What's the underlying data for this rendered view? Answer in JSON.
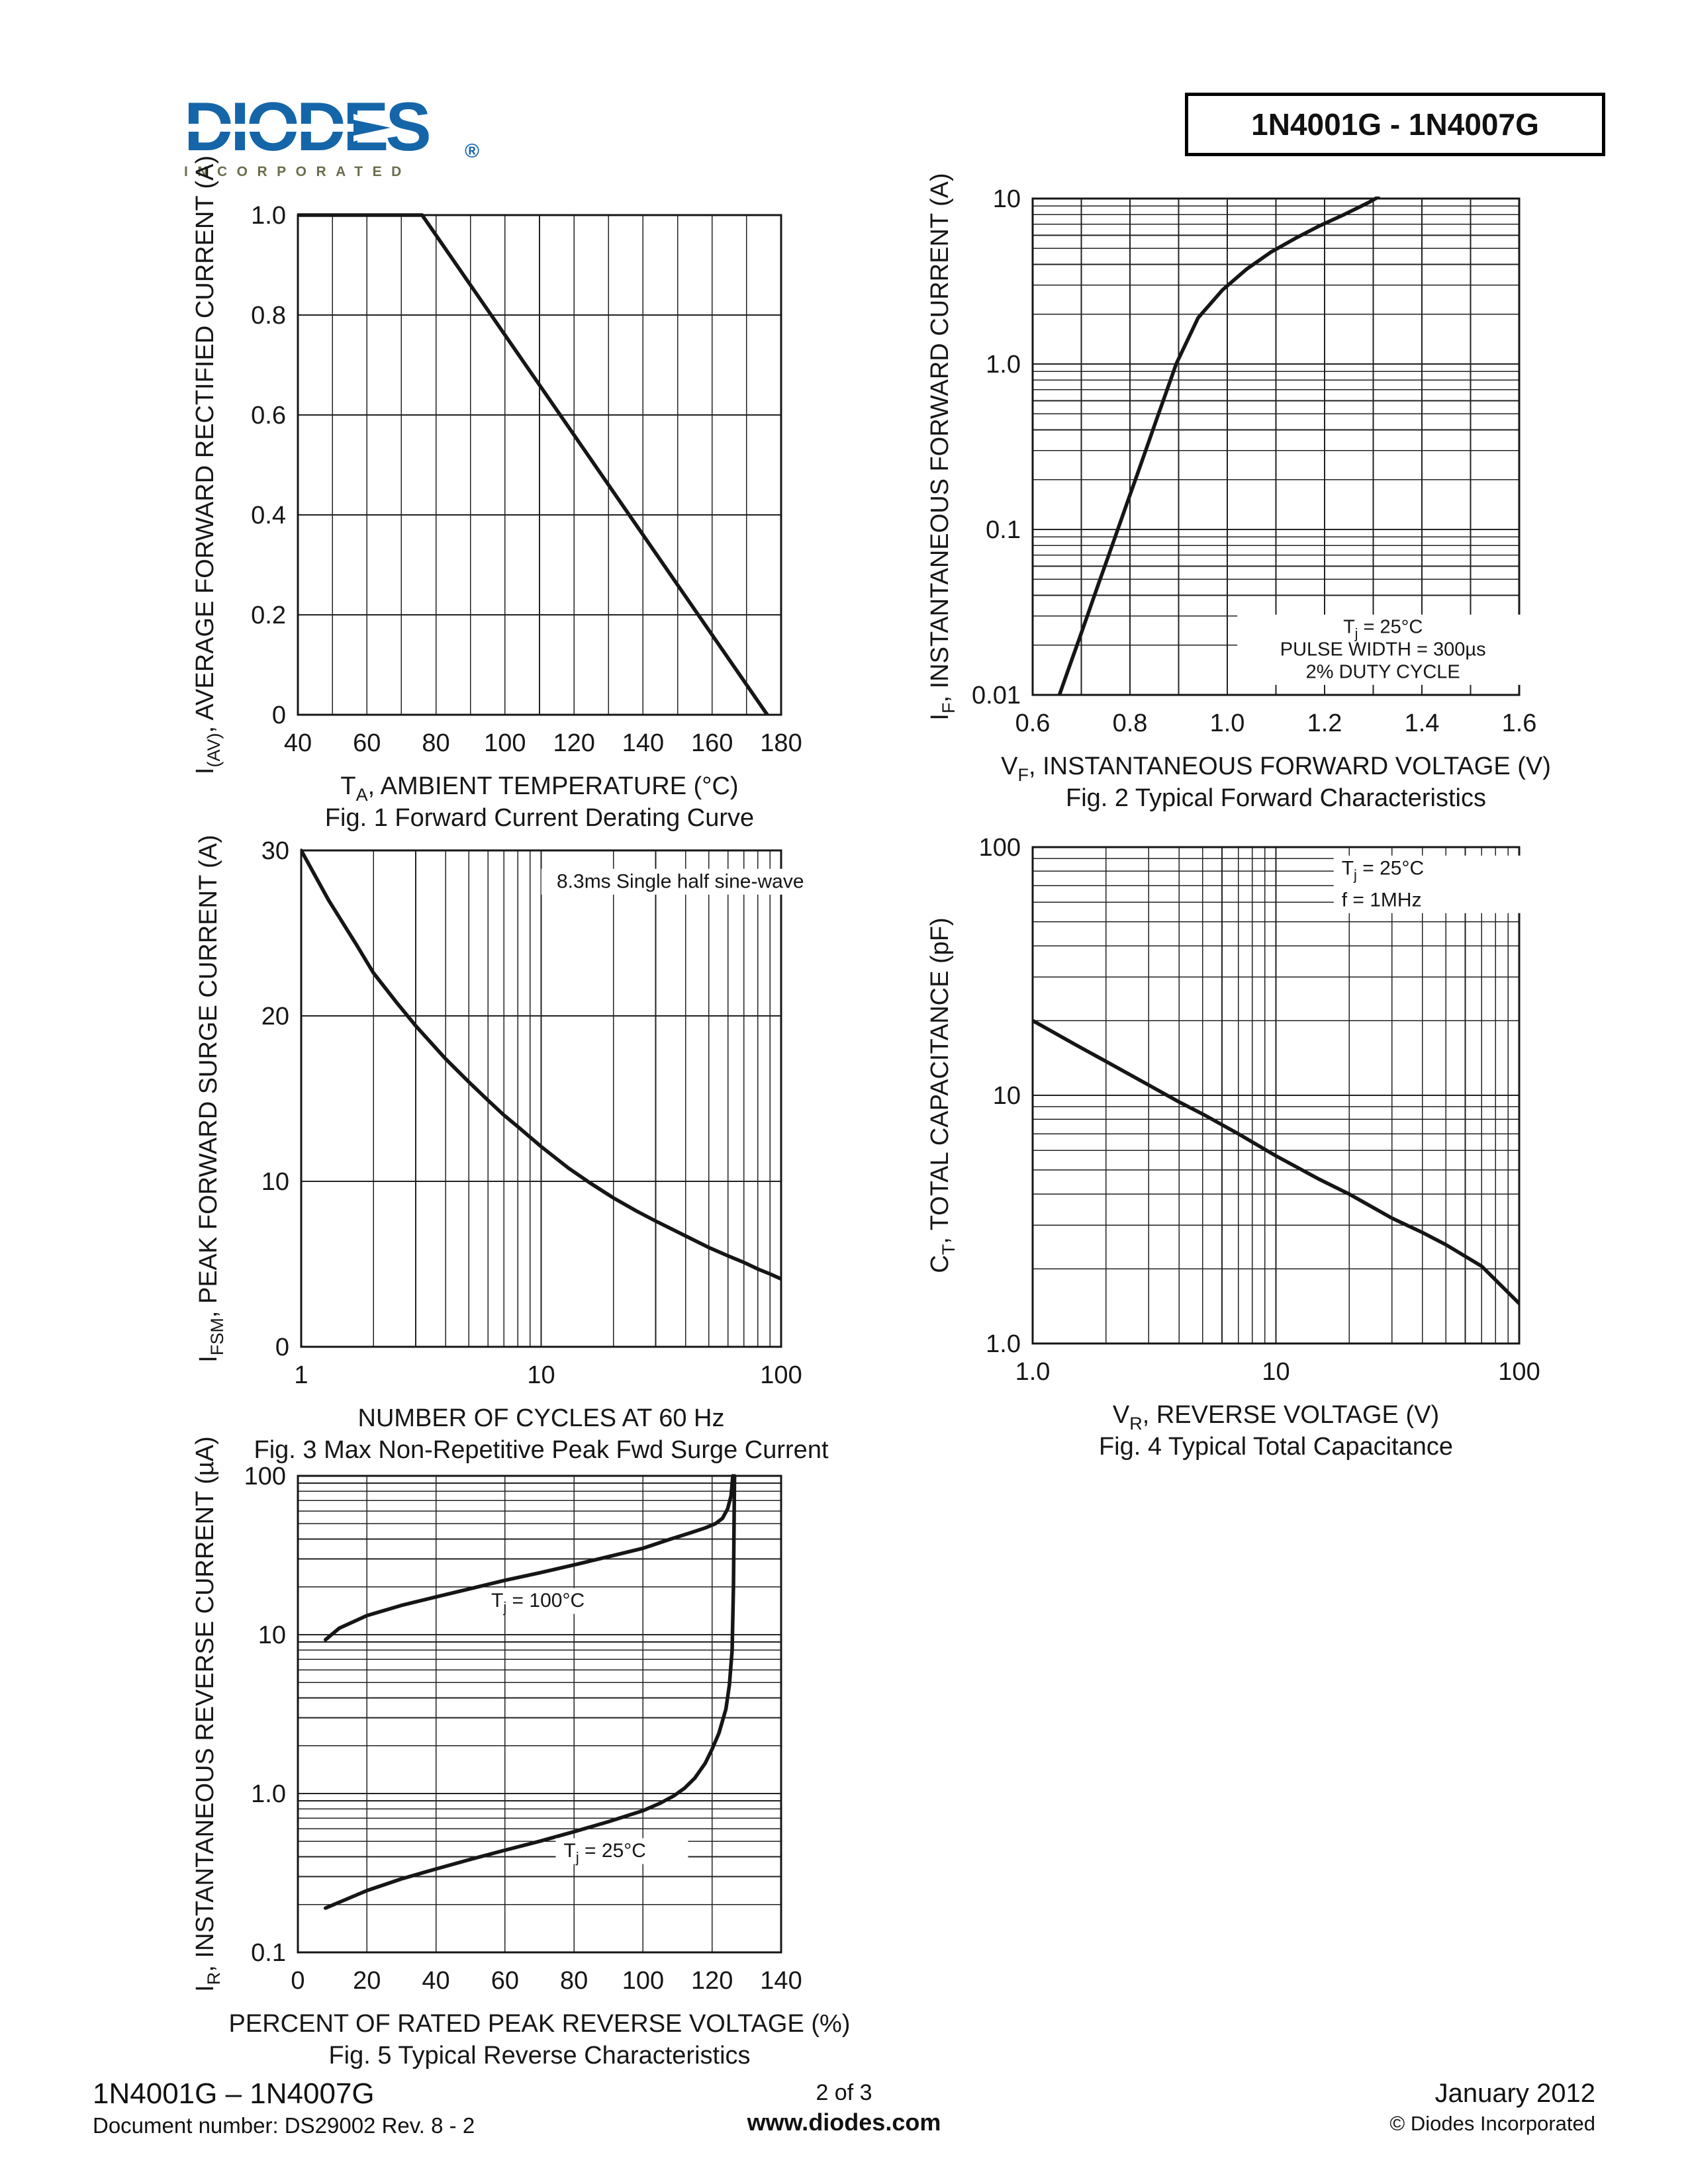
{
  "logo": {
    "brand": "DIODES",
    "tagline": "INCORPORATED",
    "registered": "®",
    "brand_color": "#1565A9",
    "tagline_color": "#6C6D4E"
  },
  "header": {
    "part_range": "1N4001G - 1N4007G"
  },
  "footer": {
    "part_range": "1N4001G – 1N4007G",
    "doc_number": "Document number: DS29002 Rev. 8 - 2",
    "page": "2 of 3",
    "website": "www.diodes.com",
    "date": "January 2012",
    "copyright": "© Diodes Incorporated"
  },
  "chart_data": [
    {
      "type": "line",
      "caption": "Fig. 1 Forward Current Derating Curve",
      "xlabel": [
        {
          "t": "T"
        },
        {
          "t": "A",
          "sub": true
        },
        {
          "t": ", AMBIENT TEMPERATURE (°C)"
        }
      ],
      "ylabel": [
        {
          "t": "I"
        },
        {
          "t": "(AV)",
          "sub": true
        },
        {
          "t": ", AVERAGE FORWARD RECTIFIED CURRENT (A)"
        }
      ],
      "x": {
        "scale": "linear",
        "min": 40,
        "max": 180,
        "grid": 10,
        "ticks": [
          {
            "v": 40,
            "l": "40"
          },
          {
            "v": 60,
            "l": "60"
          },
          {
            "v": 80,
            "l": "80"
          },
          {
            "v": 100,
            "l": "100"
          },
          {
            "v": 120,
            "l": "120"
          },
          {
            "v": 140,
            "l": "140"
          },
          {
            "v": 160,
            "l": "160"
          },
          {
            "v": 180,
            "l": "180"
          }
        ]
      },
      "y": {
        "scale": "linear",
        "min": 0,
        "max": 1.0,
        "grid": 0.2,
        "ticks": [
          {
            "v": 0,
            "l": "0"
          },
          {
            "v": 0.2,
            "l": "0.2"
          },
          {
            "v": 0.4,
            "l": "0.4"
          },
          {
            "v": 0.6,
            "l": "0.6"
          },
          {
            "v": 0.8,
            "l": "0.8"
          },
          {
            "v": 1.0,
            "l": "1.0"
          }
        ]
      },
      "series": [
        {
          "name": "forward-current-derating",
          "points": [
            [
              40,
              1.0
            ],
            [
              76,
              1.0
            ],
            [
              176,
              0
            ]
          ]
        }
      ],
      "annotations": []
    },
    {
      "type": "line",
      "caption": "Fig. 2  Typical Forward Characteristics",
      "xlabel": [
        {
          "t": "V"
        },
        {
          "t": "F",
          "sub": true
        },
        {
          "t": ", INSTANTANEOUS FORWARD VOLTAGE (V)"
        }
      ],
      "ylabel": [
        {
          "t": "I"
        },
        {
          "t": "F",
          "sub": true
        },
        {
          "t": ", INSTANTANEOUS FORWARD CURRENT (A)"
        }
      ],
      "x": {
        "scale": "linear",
        "min": 0.6,
        "max": 1.6,
        "grid": 0.1,
        "ticks": [
          {
            "v": 0.6,
            "l": "0.6"
          },
          {
            "v": 0.8,
            "l": "0.8"
          },
          {
            "v": 1.0,
            "l": "1.0"
          },
          {
            "v": 1.2,
            "l": "1.2"
          },
          {
            "v": 1.4,
            "l": "1.4"
          },
          {
            "v": 1.6,
            "l": "1.6"
          }
        ]
      },
      "y": {
        "scale": "log",
        "min": 0.01,
        "max": 10,
        "ticks": [
          {
            "v": 10,
            "l": "10"
          },
          {
            "v": 1,
            "l": "1.0"
          },
          {
            "v": 0.1,
            "l": "0.1"
          },
          {
            "v": 0.01,
            "l": "0.01"
          }
        ]
      },
      "series": [
        {
          "name": "typical-forward-characteristic",
          "points": [
            [
              0.655,
              0.01
            ],
            [
              0.675,
              0.0147
            ],
            [
              0.695,
              0.0215
            ],
            [
              0.715,
              0.0316
            ],
            [
              0.735,
              0.0466
            ],
            [
              0.755,
              0.0681
            ],
            [
              0.775,
              0.1
            ],
            [
              0.795,
              0.147
            ],
            [
              0.815,
              0.215
            ],
            [
              0.835,
              0.316
            ],
            [
              0.855,
              0.465
            ],
            [
              0.875,
              0.681
            ],
            [
              0.895,
              1.0
            ],
            [
              0.94,
              1.9
            ],
            [
              0.99,
              2.8
            ],
            [
              1.04,
              3.75
            ],
            [
              1.09,
              4.75
            ],
            [
              1.14,
              5.75
            ],
            [
              1.19,
              6.85
            ],
            [
              1.24,
              8.0
            ],
            [
              1.29,
              9.45
            ],
            [
              1.31,
              10.2
            ]
          ]
        }
      ],
      "annotations": [
        {
          "fx": 0.72,
          "fy": 0.875,
          "anchor": "middle",
          "size": 29,
          "lh": 1.18,
          "boxed": true,
          "boxw": 440,
          "lines": [
            [
              {
                "t": "T"
              },
              {
                "t": "j",
                "sub": true
              },
              {
                "t": " = 25°C"
              }
            ],
            [
              {
                "t": "PULSE WIDTH = 300µs"
              }
            ],
            [
              {
                "t": "2% DUTY CYCLE"
              }
            ]
          ]
        }
      ]
    },
    {
      "type": "line",
      "caption": "Fig. 3  Max Non-Repetitive Peak Fwd Surge Current",
      "xlabel": [
        {
          "t": "NUMBER OF CYCLES AT 60 Hz"
        }
      ],
      "ylabel": [
        {
          "t": "I"
        },
        {
          "t": "FSM",
          "sub": true
        },
        {
          "t": ", PEAK FORWARD SURGE CURRENT (A)"
        }
      ],
      "x": {
        "scale": "log",
        "min": 1,
        "max": 100,
        "ticks": [
          {
            "v": 1,
            "l": "1"
          },
          {
            "v": 10,
            "l": "10"
          },
          {
            "v": 100,
            "l": "100"
          }
        ]
      },
      "y": {
        "scale": "linear",
        "min": 0,
        "max": 30,
        "grid": 10,
        "ticks": [
          {
            "v": 0,
            "l": "0"
          },
          {
            "v": 10,
            "l": "10"
          },
          {
            "v": 20,
            "l": "20"
          },
          {
            "v": 30,
            "l": "30"
          }
        ]
      },
      "series": [
        {
          "name": "peak-forward-surge-current",
          "points": [
            [
              1,
              30
            ],
            [
              1.3,
              27
            ],
            [
              1.7,
              24.3
            ],
            [
              2,
              22.6
            ],
            [
              2.5,
              20.8
            ],
            [
              3,
              19.4
            ],
            [
              4,
              17.4
            ],
            [
              5,
              16
            ],
            [
              6,
              14.9
            ],
            [
              7,
              14
            ],
            [
              8,
              13.3
            ],
            [
              10,
              12.1
            ],
            [
              13,
              10.8
            ],
            [
              16,
              9.9
            ],
            [
              20,
              9
            ],
            [
              25,
              8.2
            ],
            [
              30,
              7.6
            ],
            [
              40,
              6.7
            ],
            [
              50,
              6
            ],
            [
              60,
              5.5
            ],
            [
              70,
              5.1
            ],
            [
              80,
              4.7
            ],
            [
              90,
              4.4
            ],
            [
              100,
              4.1
            ]
          ]
        }
      ],
      "annotations": [
        {
          "fx": 0.79,
          "fy": 0.075,
          "anchor": "middle",
          "size": 30,
          "lh": 1.2,
          "boxed": true,
          "boxw": 420,
          "lines": [
            [
              {
                "t": "8.3ms Single half sine-wave"
              }
            ]
          ]
        }
      ]
    },
    {
      "type": "line",
      "caption": "Fig. 4  Typical Total Capacitance",
      "xlabel": [
        {
          "t": "V"
        },
        {
          "t": "R",
          "sub": true
        },
        {
          "t": ", REVERSE VOLTAGE (V)"
        }
      ],
      "ylabel": [
        {
          "t": "C"
        },
        {
          "t": "T",
          "sub": true
        },
        {
          "t": ", TOTAL CAPACITANCE (pF)"
        }
      ],
      "x": {
        "scale": "log",
        "min": 1,
        "max": 100,
        "ticks": [
          {
            "v": 1,
            "l": "1.0"
          },
          {
            "v": 10,
            "l": "10"
          },
          {
            "v": 100,
            "l": "100"
          }
        ]
      },
      "y": {
        "scale": "log",
        "min": 1,
        "max": 100,
        "ticks": [
          {
            "v": 100,
            "l": "100"
          },
          {
            "v": 10,
            "l": "10"
          },
          {
            "v": 1,
            "l": "1.0"
          }
        ]
      },
      "series": [
        {
          "name": "total-capacitance",
          "points": [
            [
              1,
              20
            ],
            [
              1.5,
              16
            ],
            [
              2,
              13.7
            ],
            [
              3,
              11
            ],
            [
              4,
              9.4
            ],
            [
              5,
              8.4
            ],
            [
              7,
              7
            ],
            [
              10,
              5.7
            ],
            [
              15,
              4.6
            ],
            [
              20,
              4
            ],
            [
              30,
              3.2
            ],
            [
              40,
              2.8
            ],
            [
              50,
              2.5
            ],
            [
              70,
              2.05
            ],
            [
              100,
              1.45
            ]
          ]
        }
      ],
      "annotations": [
        {
          "fx": 0.635,
          "fy": 0.055,
          "anchor": "start",
          "size": 30,
          "lh": 1.6,
          "boxed": true,
          "boxw": 300,
          "lines": [
            [
              {
                "t": "T"
              },
              {
                "t": "j",
                "sub": true
              },
              {
                "t": " = 25°C"
              }
            ],
            [
              {
                "t": "f = 1MHz"
              }
            ]
          ]
        }
      ]
    },
    {
      "type": "line",
      "caption": "Fig. 5  Typical Reverse Characteristics",
      "xlabel": [
        {
          "t": "PERCENT OF RATED PEAK REVERSE VOLTAGE (%)"
        }
      ],
      "ylabel": [
        {
          "t": "I"
        },
        {
          "t": "R",
          "sub": true
        },
        {
          "t": ", INSTANTANEOUS REVERSE CURRENT (µA)"
        }
      ],
      "x": {
        "scale": "linear",
        "min": 0,
        "max": 140,
        "grid": 20,
        "ticks": [
          {
            "v": 0,
            "l": "0"
          },
          {
            "v": 20,
            "l": "20"
          },
          {
            "v": 40,
            "l": "40"
          },
          {
            "v": 60,
            "l": "60"
          },
          {
            "v": 80,
            "l": "80"
          },
          {
            "v": 100,
            "l": "100"
          },
          {
            "v": 120,
            "l": "120"
          },
          {
            "v": 140,
            "l": "140"
          }
        ]
      },
      "y": {
        "scale": "log",
        "min": 0.1,
        "max": 100,
        "ticks": [
          {
            "v": 100,
            "l": "100"
          },
          {
            "v": 10,
            "l": "10"
          },
          {
            "v": 1,
            "l": "1.0"
          },
          {
            "v": 0.1,
            "l": "0.1"
          }
        ]
      },
      "series": [
        {
          "name": "reverse-current-tj-100c",
          "points": [
            [
              8,
              9.3
            ],
            [
              12,
              11
            ],
            [
              20,
              13.2
            ],
            [
              30,
              15.3
            ],
            [
              40,
              17.3
            ],
            [
              50,
              19.5
            ],
            [
              60,
              22
            ],
            [
              70,
              24.5
            ],
            [
              80,
              27.5
            ],
            [
              90,
              31
            ],
            [
              100,
              35
            ],
            [
              108,
              40
            ],
            [
              114,
              44
            ],
            [
              118,
              47
            ],
            [
              121,
              50
            ],
            [
              123,
              54
            ],
            [
              124.5,
              62
            ],
            [
              125.5,
              75
            ],
            [
              126,
              100
            ]
          ]
        },
        {
          "name": "reverse-current-tj-25c",
          "points": [
            [
              8,
              0.19
            ],
            [
              20,
              0.245
            ],
            [
              30,
              0.29
            ],
            [
              40,
              0.335
            ],
            [
              50,
              0.385
            ],
            [
              60,
              0.44
            ],
            [
              70,
              0.5
            ],
            [
              80,
              0.575
            ],
            [
              90,
              0.665
            ],
            [
              100,
              0.78
            ],
            [
              105,
              0.87
            ],
            [
              109,
              0.97
            ],
            [
              112,
              1.08
            ],
            [
              115,
              1.25
            ],
            [
              118,
              1.55
            ],
            [
              120,
              1.9
            ],
            [
              122,
              2.4
            ],
            [
              124,
              3.4
            ],
            [
              125,
              4.8
            ],
            [
              125.8,
              8
            ],
            [
              126.2,
              20
            ],
            [
              126.5,
              100
            ]
          ]
        }
      ],
      "annotations": [
        {
          "fx": 0.4,
          "fy": 0.275,
          "anchor": "start",
          "size": 30,
          "lh": 1.2,
          "boxed": true,
          "boxw": 215,
          "lines": [
            [
              {
                "t": "T"
              },
              {
                "t": "j",
                "sub": true
              },
              {
                "t": " = 100°C"
              }
            ]
          ]
        },
        {
          "fx": 0.55,
          "fy": 0.8,
          "anchor": "start",
          "size": 30,
          "lh": 1.2,
          "boxed": true,
          "boxw": 200,
          "lines": [
            [
              {
                "t": "T"
              },
              {
                "t": "j",
                "sub": true
              },
              {
                "t": " = 25°C"
              }
            ]
          ]
        }
      ]
    }
  ]
}
